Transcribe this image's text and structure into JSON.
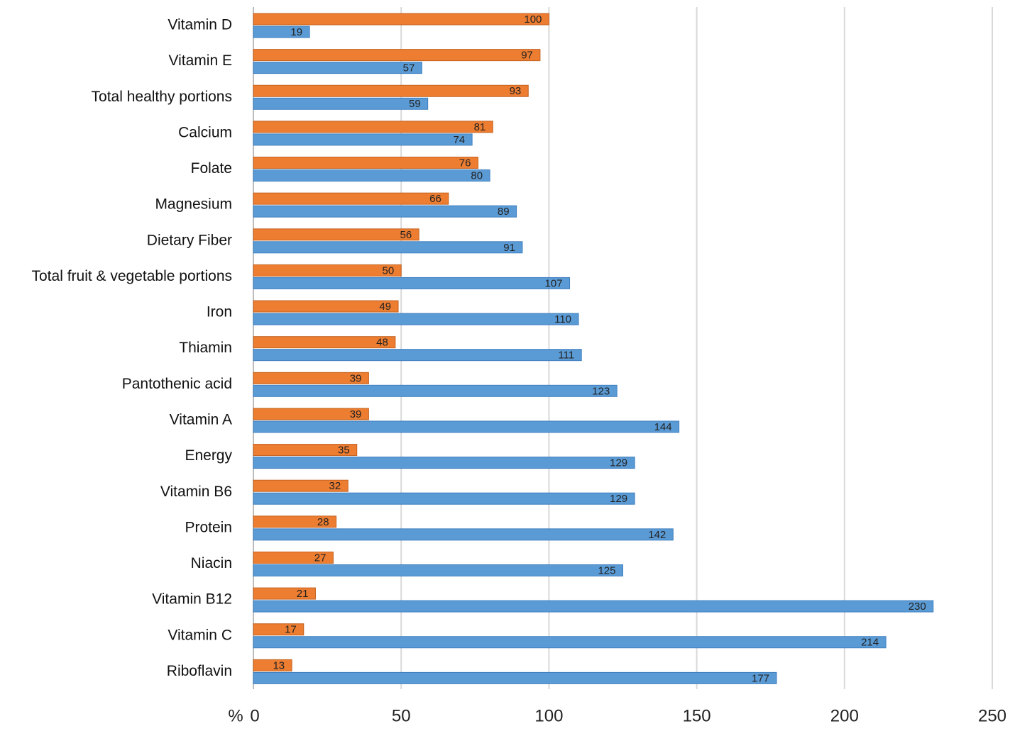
{
  "chart_data": {
    "type": "hbar",
    "xlabel": "%",
    "categories": [
      "Vitamin D",
      "Vitamin E",
      "Total healthy portions",
      "Calcium",
      "Folate",
      "Magnesium",
      "Dietary Fiber",
      "Total fruit & vegetable portions",
      "Iron",
      "Thiamin",
      "Pantothenic acid",
      "Vitamin A",
      "Energy",
      "Vitamin B6",
      "Protein",
      "Niacin",
      "Vitamin B12",
      "Vitamin C",
      "Riboflavin"
    ],
    "series": [
      {
        "color": "#ED7D31",
        "values": [
          100,
          97,
          93,
          81,
          76,
          66,
          56,
          50,
          49,
          48,
          39,
          39,
          35,
          32,
          28,
          27,
          21,
          17,
          13
        ]
      },
      {
        "color": "#5B9BD5",
        "values": [
          19,
          57,
          59,
          74,
          80,
          89,
          91,
          107,
          110,
          111,
          123,
          144,
          129,
          129,
          142,
          125,
          230,
          214,
          177
        ]
      }
    ],
    "xlim": [
      0,
      250
    ],
    "xticks": [
      0,
      50,
      100,
      150,
      200,
      250
    ],
    "grid": true
  }
}
